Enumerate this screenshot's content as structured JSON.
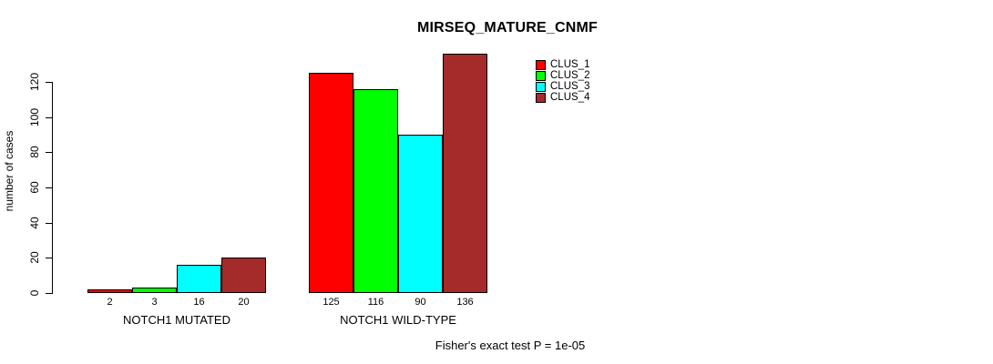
{
  "title": "MIRSEQ_MATURE_CNMF",
  "ylabel": "number of cases",
  "footer": "Fisher's exact test P = 1e-05",
  "colors": {
    "clus_1": "#FF0000",
    "clus_2": "#00FF00",
    "clus_3": "#00FFFF",
    "clus_4": "#A52A2A",
    "axis": "#000000",
    "background": "#FFFFFF"
  },
  "legend": {
    "items": [
      {
        "label": "CLUS_1",
        "color": "#FF0000"
      },
      {
        "label": "CLUS_2",
        "color": "#00FF00"
      },
      {
        "label": "CLUS_3",
        "color": "#00FFFF"
      },
      {
        "label": "CLUS_4",
        "color": "#A52A2A"
      }
    ]
  },
  "chart_data": {
    "type": "bar",
    "title": "MIRSEQ_MATURE_CNMF",
    "xlabel": "",
    "ylabel": "number of cases",
    "categories": [
      "NOTCH1 MUTATED",
      "NOTCH1 WILD-TYPE"
    ],
    "series": [
      {
        "name": "CLUS_1",
        "color": "#FF0000",
        "values": [
          2,
          125
        ]
      },
      {
        "name": "CLUS_2",
        "color": "#00FF00",
        "values": [
          3,
          116
        ]
      },
      {
        "name": "CLUS_3",
        "color": "#00FFFF",
        "values": [
          16,
          90
        ]
      },
      {
        "name": "CLUS_4",
        "color": "#A52A2A",
        "values": [
          20,
          136
        ]
      }
    ],
    "bar_value_labels_shown": true,
    "yticks": [
      0,
      20,
      40,
      60,
      80,
      100,
      120
    ],
    "ylim": [
      0,
      140
    ],
    "grid": false,
    "legend_position": "top-right",
    "annotation": "Fisher's exact test P = 1e-05"
  }
}
